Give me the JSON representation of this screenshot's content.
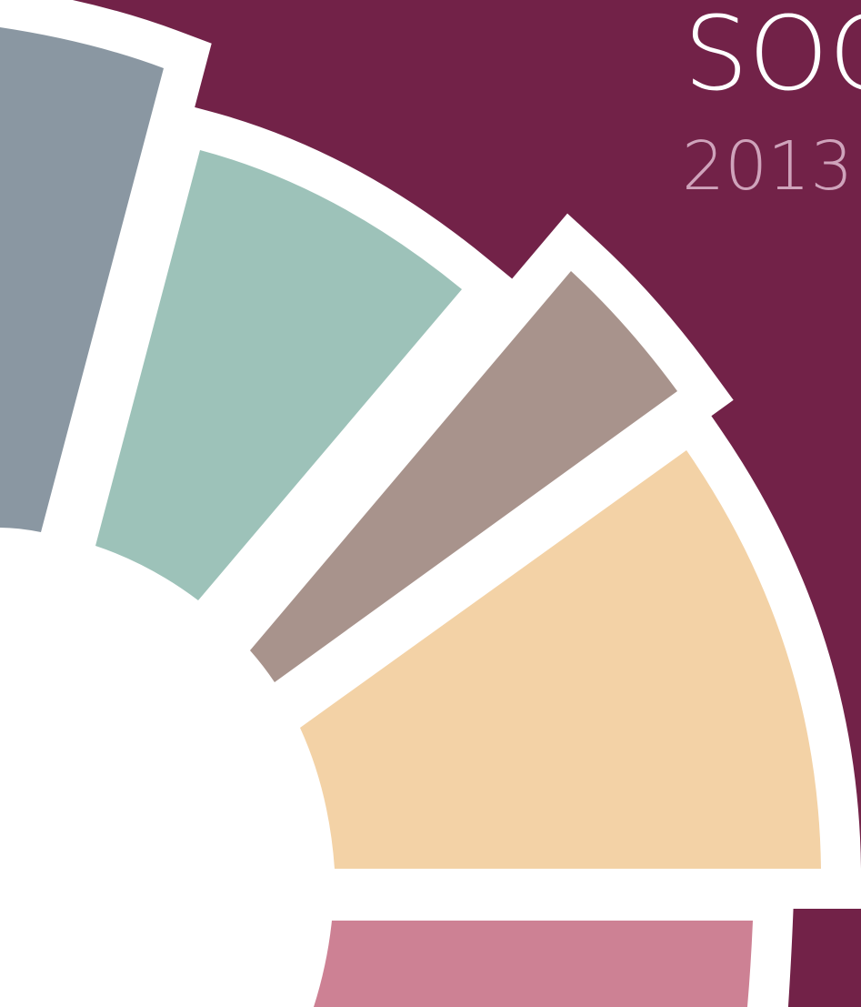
{
  "cover": {
    "title": "SOC",
    "year": "2013"
  }
}
